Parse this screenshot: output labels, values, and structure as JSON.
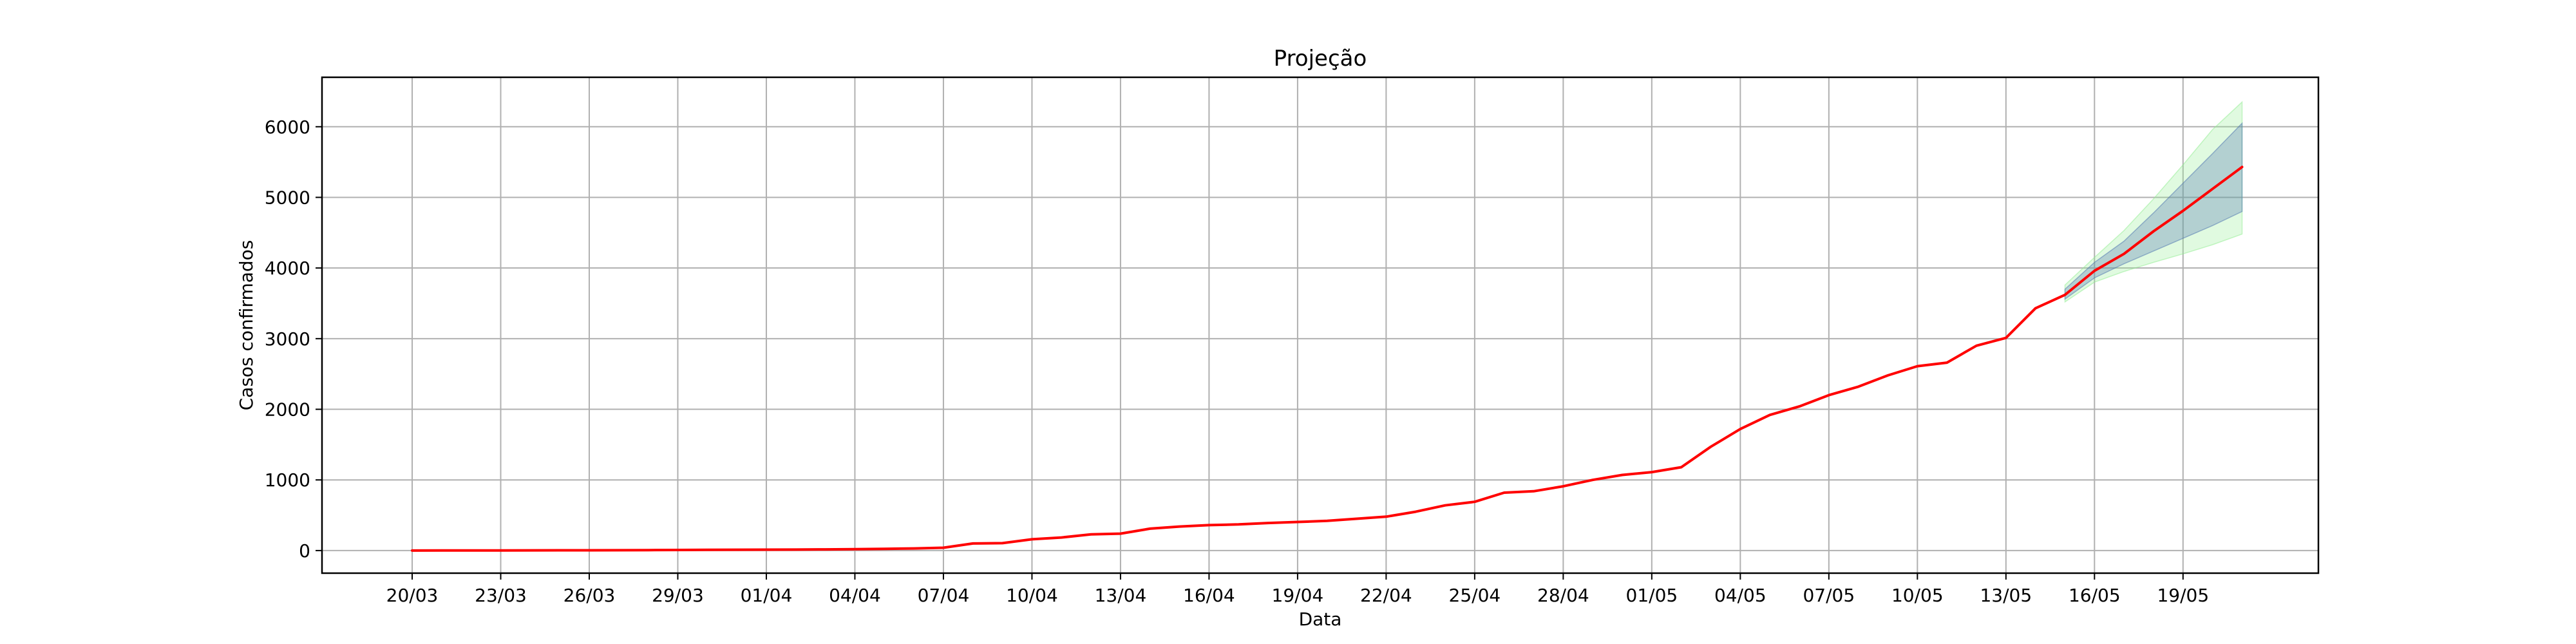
{
  "chart_data": {
    "type": "line",
    "title": "Projeção",
    "xlabel": "Data",
    "ylabel": "Casos confirmados",
    "ylim": [
      -320,
      6700
    ],
    "yticks": [
      0,
      1000,
      2000,
      3000,
      4000,
      5000,
      6000
    ],
    "x_start": "20/03",
    "xticks": [
      {
        "label": "20/03",
        "day": 0
      },
      {
        "label": "23/03",
        "day": 3
      },
      {
        "label": "26/03",
        "day": 6
      },
      {
        "label": "29/03",
        "day": 9
      },
      {
        "label": "01/04",
        "day": 12
      },
      {
        "label": "04/04",
        "day": 15
      },
      {
        "label": "07/04",
        "day": 18
      },
      {
        "label": "10/04",
        "day": 21
      },
      {
        "label": "13/04",
        "day": 24
      },
      {
        "label": "16/04",
        "day": 27
      },
      {
        "label": "19/04",
        "day": 30
      },
      {
        "label": "22/04",
        "day": 33
      },
      {
        "label": "25/04",
        "day": 36
      },
      {
        "label": "28/04",
        "day": 39
      },
      {
        "label": "01/05",
        "day": 42
      },
      {
        "label": "04/05",
        "day": 45
      },
      {
        "label": "07/05",
        "day": 48
      },
      {
        "label": "10/05",
        "day": 51
      },
      {
        "label": "13/05",
        "day": 54
      },
      {
        "label": "16/05",
        "day": 57
      },
      {
        "label": "19/05",
        "day": 60
      }
    ],
    "grid": true,
    "colors": {
      "line": "#ff0000",
      "band_inner": "#4c72b0",
      "band_outer": "#90ee90",
      "grid": "#b0b0b0"
    },
    "series": [
      {
        "values": [
          0,
          1,
          1,
          2,
          3,
          4,
          4,
          5,
          6,
          8,
          10,
          12,
          13,
          14,
          16,
          20,
          25,
          30,
          40,
          100,
          105,
          160,
          185,
          230,
          240,
          310,
          340,
          360,
          370,
          390,
          405,
          420,
          450,
          480,
          550,
          640,
          690,
          820,
          840,
          910,
          1000,
          1070,
          1110,
          1180,
          1470,
          1720,
          1920,
          2040,
          2200,
          2320,
          2480,
          2610,
          2660,
          2900,
          3010,
          3430,
          3620,
          3960,
          4200,
          4520,
          4810,
          5120,
          5430
        ]
      }
    ],
    "bands": [
      {
        "start_day": 56,
        "lower": [
          3520,
          3800,
          3950,
          4080,
          4200,
          4330,
          4480
        ],
        "upper": [
          3760,
          4150,
          4530,
          4980,
          5460,
          5960,
          6350
        ]
      },
      {
        "start_day": 56,
        "lower": [
          3560,
          3860,
          4060,
          4240,
          4420,
          4600,
          4800
        ],
        "upper": [
          3700,
          4080,
          4380,
          4780,
          5200,
          5620,
          6050
        ]
      }
    ]
  }
}
